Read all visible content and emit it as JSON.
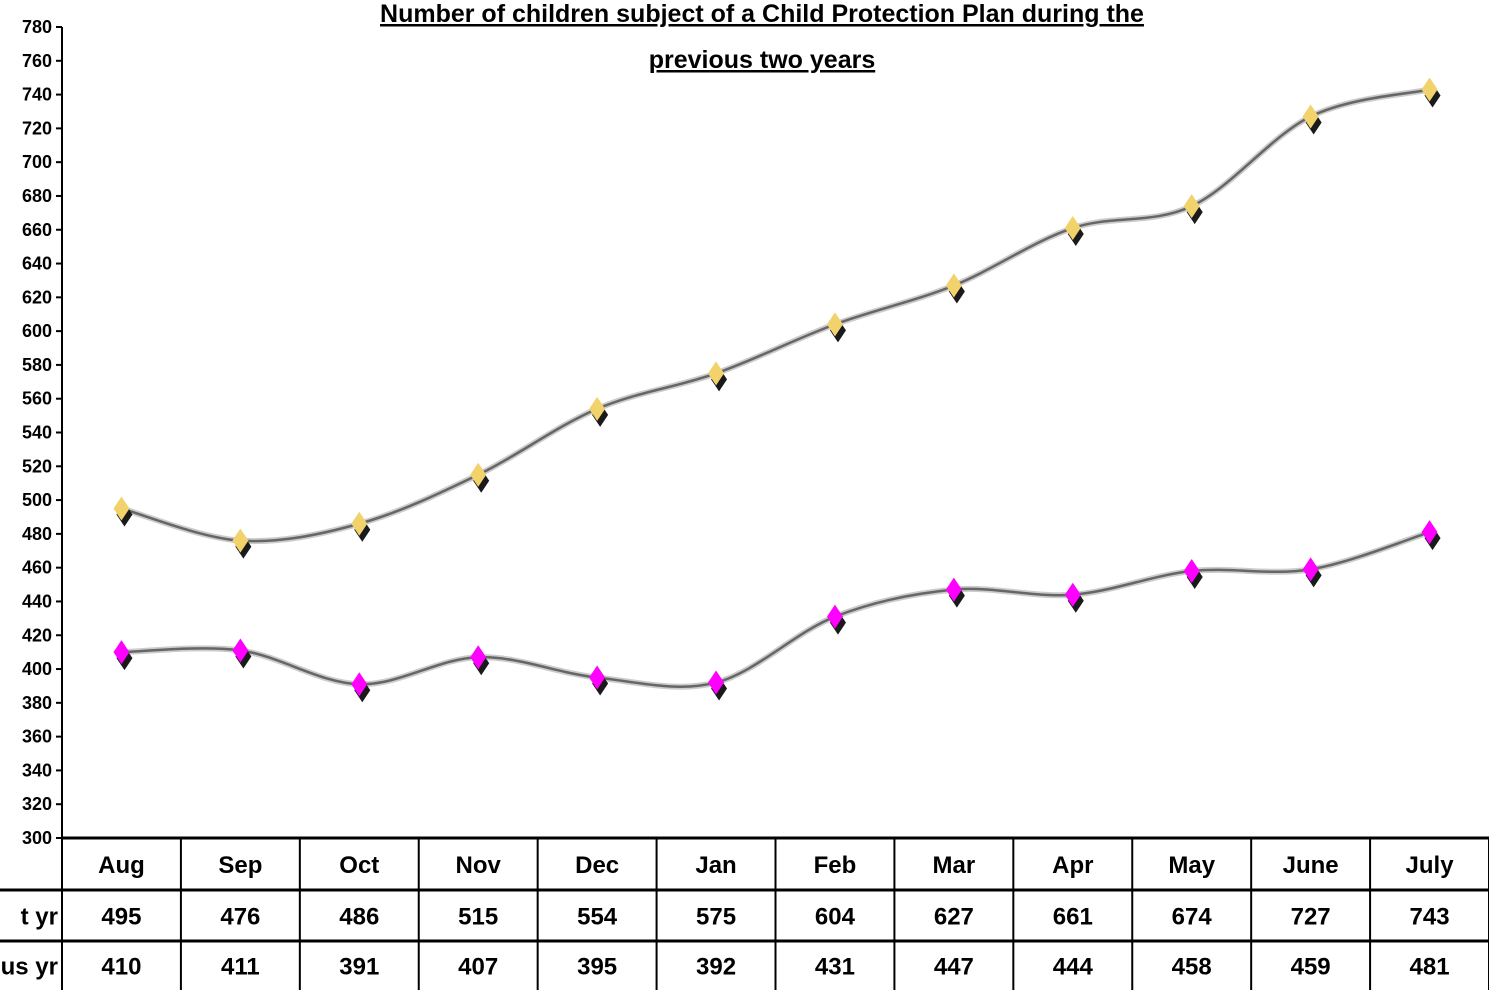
{
  "chart_data": {
    "type": "line",
    "title_lines": [
      "Number of children subject of a Child Protection Plan during the",
      "previous two years"
    ],
    "categories": [
      "Aug",
      "Sep",
      "Oct",
      "Nov",
      "Dec",
      "Jan",
      "Feb",
      "Mar",
      "Apr",
      "May",
      "June",
      "July"
    ],
    "series": [
      {
        "name": "t yr",
        "values": [
          495,
          476,
          486,
          515,
          554,
          575,
          604,
          627,
          661,
          674,
          727,
          743
        ],
        "marker_color": "#f2d26b"
      },
      {
        "name": "us yr",
        "values": [
          410,
          411,
          391,
          407,
          395,
          392,
          431,
          447,
          444,
          458,
          459,
          481
        ],
        "marker_color": "#ff00ff"
      }
    ],
    "ylim": [
      300,
      780
    ],
    "ytick_step": 20,
    "line_color": "#666666",
    "grid": false,
    "data_table": true
  }
}
